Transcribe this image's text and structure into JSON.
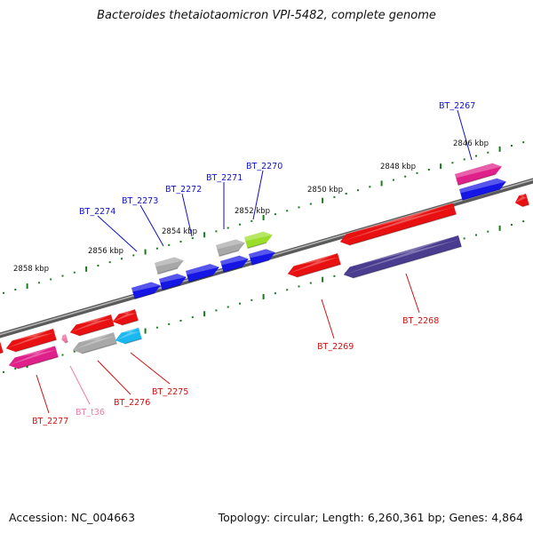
{
  "header": {
    "title": "Bacteroides thetaiotaomicron VPI-5482, complete genome"
  },
  "footer": {
    "accession": "Accession: NC_004663",
    "summary": "Topology: circular; Length: 6,260,361 bp; Genes: 4,864"
  },
  "colors": {
    "forward_label": "#1010c8",
    "reverse_label": "#d01010",
    "trna_label": "#f07aa8",
    "backbone": "#808080",
    "ticks": "#1a7a1a"
  },
  "scale_labels": [
    {
      "text": "2846 kbp"
    },
    {
      "text": "2848 kbp"
    },
    {
      "text": "2850 kbp"
    },
    {
      "text": "2852 kbp"
    },
    {
      "text": "2854 kbp"
    },
    {
      "text": "2856 kbp"
    },
    {
      "text": "2858 kbp"
    }
  ],
  "genes": [
    {
      "name": "BT_2267",
      "strand": "forward"
    },
    {
      "name": "BT_2270",
      "strand": "forward"
    },
    {
      "name": "BT_2271",
      "strand": "forward"
    },
    {
      "name": "BT_2272",
      "strand": "forward"
    },
    {
      "name": "BT_2273",
      "strand": "forward"
    },
    {
      "name": "BT_2274",
      "strand": "forward"
    },
    {
      "name": "BT_2268",
      "strand": "reverse"
    },
    {
      "name": "BT_2269",
      "strand": "reverse"
    },
    {
      "name": "BT_2275",
      "strand": "reverse"
    },
    {
      "name": "BT_2276",
      "strand": "reverse"
    },
    {
      "name": "BT_2277",
      "strand": "reverse"
    },
    {
      "name": "BT_t36",
      "strand": "reverse"
    }
  ]
}
